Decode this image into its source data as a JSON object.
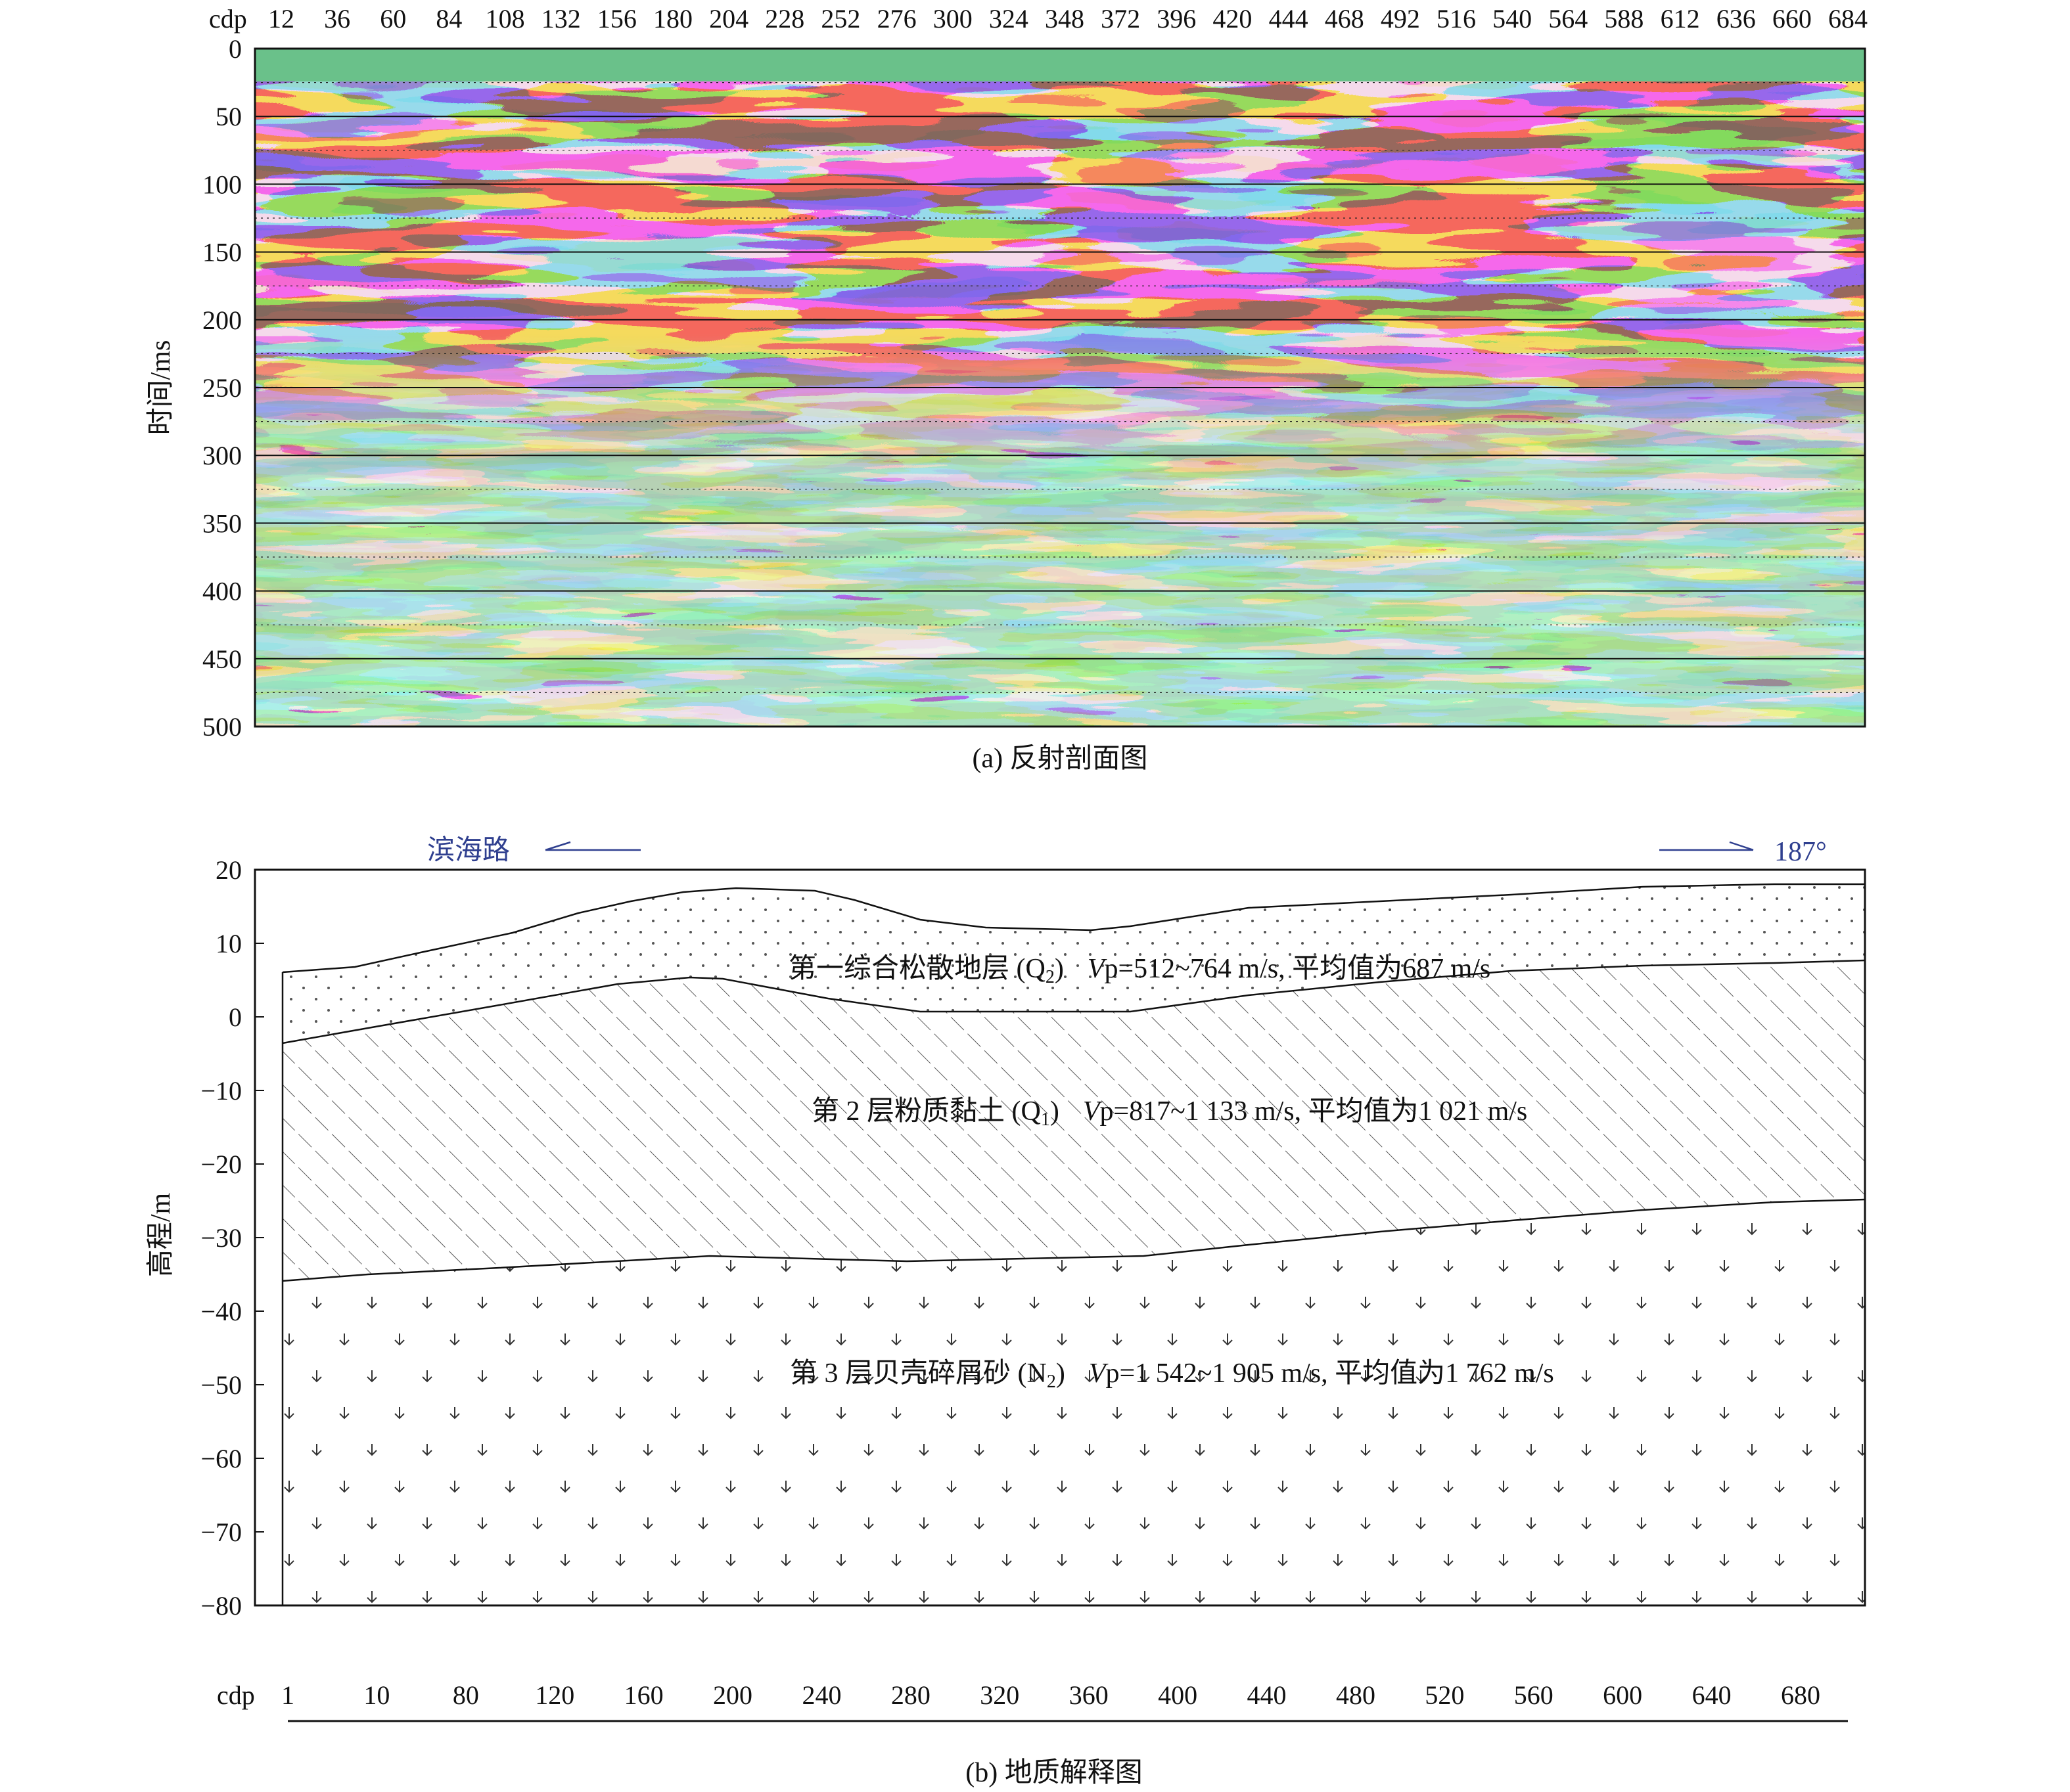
{
  "panel_a": {
    "x_prefix": "cdp",
    "x_ticks": [
      "12",
      "36",
      "60",
      "84",
      "108",
      "132",
      "156",
      "180",
      "204",
      "228",
      "252",
      "276",
      "300",
      "324",
      "348",
      "372",
      "396",
      "420",
      "444",
      "468",
      "492",
      "516",
      "540",
      "564",
      "588",
      "612",
      "636",
      "660",
      "684"
    ],
    "y_ticks": [
      "0",
      "50",
      "100",
      "150",
      "200",
      "250",
      "300",
      "350",
      "400",
      "450",
      "500"
    ],
    "y_label": "时间/ms",
    "caption": "(a) 反射剖面图",
    "colors": {
      "red": "#e8241c",
      "blue": "#3b3fa6",
      "green": "#6ac18a",
      "cyan": "#4fb3d4",
      "yellow": "#d8e04a"
    }
  },
  "panel_b": {
    "y_ticks": [
      "20",
      "10",
      "0",
      "−10",
      "−20",
      "−30",
      "−40",
      "−50",
      "−60",
      "−70",
      "−80"
    ],
    "y_label": "高程/m",
    "x_prefix": "cdp",
    "x_ticks": [
      "1",
      "10",
      "80",
      "120",
      "160",
      "200",
      "240",
      "280",
      "320",
      "360",
      "400",
      "440",
      "480",
      "520",
      "560",
      "600",
      "640",
      "680"
    ],
    "dir_left": "滨海路",
    "dir_right": "187°",
    "layer1": {
      "name": "第一综合松散地层 (Q",
      "sub": "2",
      "close": ")",
      "vp_prefix": "V",
      "vp": "p=512~764 m/s, 平均值为687 m/s"
    },
    "layer2": {
      "name": "第 2 层粉质黏土 (Q",
      "sub": "1",
      "close": ")",
      "vp_prefix": "V",
      "vp": "p=817~1 133 m/s, 平均值为1 021 m/s"
    },
    "layer3": {
      "name": "第 3 层贝壳碎屑砂 (N",
      "sub": "2",
      "close": ")",
      "vp_prefix": "V",
      "vp": "p=1 542~1 905 m/s, 平均值为1 762 m/s"
    },
    "caption": "(b) 地质解释图"
  }
}
